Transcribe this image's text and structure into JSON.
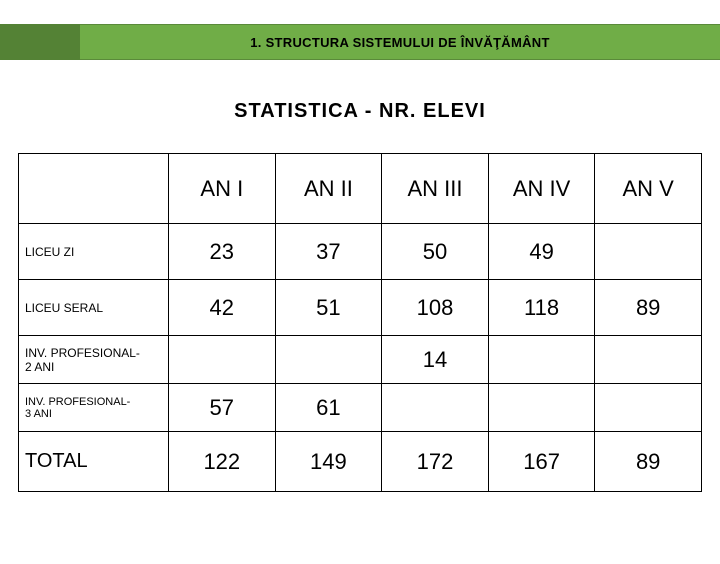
{
  "header": {
    "title": "1. STRUCTURA SISTEMULUI DE  ÎNVĂŢĂMÂNT"
  },
  "subtitle": "STATISTICA  - NR.   ELEVI",
  "colors": {
    "header_left": "#548235",
    "header_main": "#70ad47",
    "border": "#000000",
    "background": "#ffffff"
  },
  "table": {
    "columns": [
      "",
      "AN I",
      "AN II",
      "AN III",
      "AN IV",
      "AN V"
    ],
    "rows": [
      {
        "label": "LICEU ZI",
        "cells": [
          "23",
          "37",
          "50",
          "49",
          ""
        ]
      },
      {
        "label": "LICEU SERAL",
        "cells": [
          "42",
          "51",
          "108",
          "118",
          "89"
        ]
      },
      {
        "label": "INV. PROFESIONAL-\n2 ANI",
        "cells": [
          "",
          "",
          "14",
          "",
          ""
        ]
      },
      {
        "label": "INV. PROFESIONAL-\n3 ANI",
        "cells": [
          "57",
          "61",
          "",
          "",
          ""
        ]
      },
      {
        "label": "TOTAL",
        "cells": [
          "122",
          "149",
          "172",
          "167",
          "89"
        ]
      }
    ]
  }
}
